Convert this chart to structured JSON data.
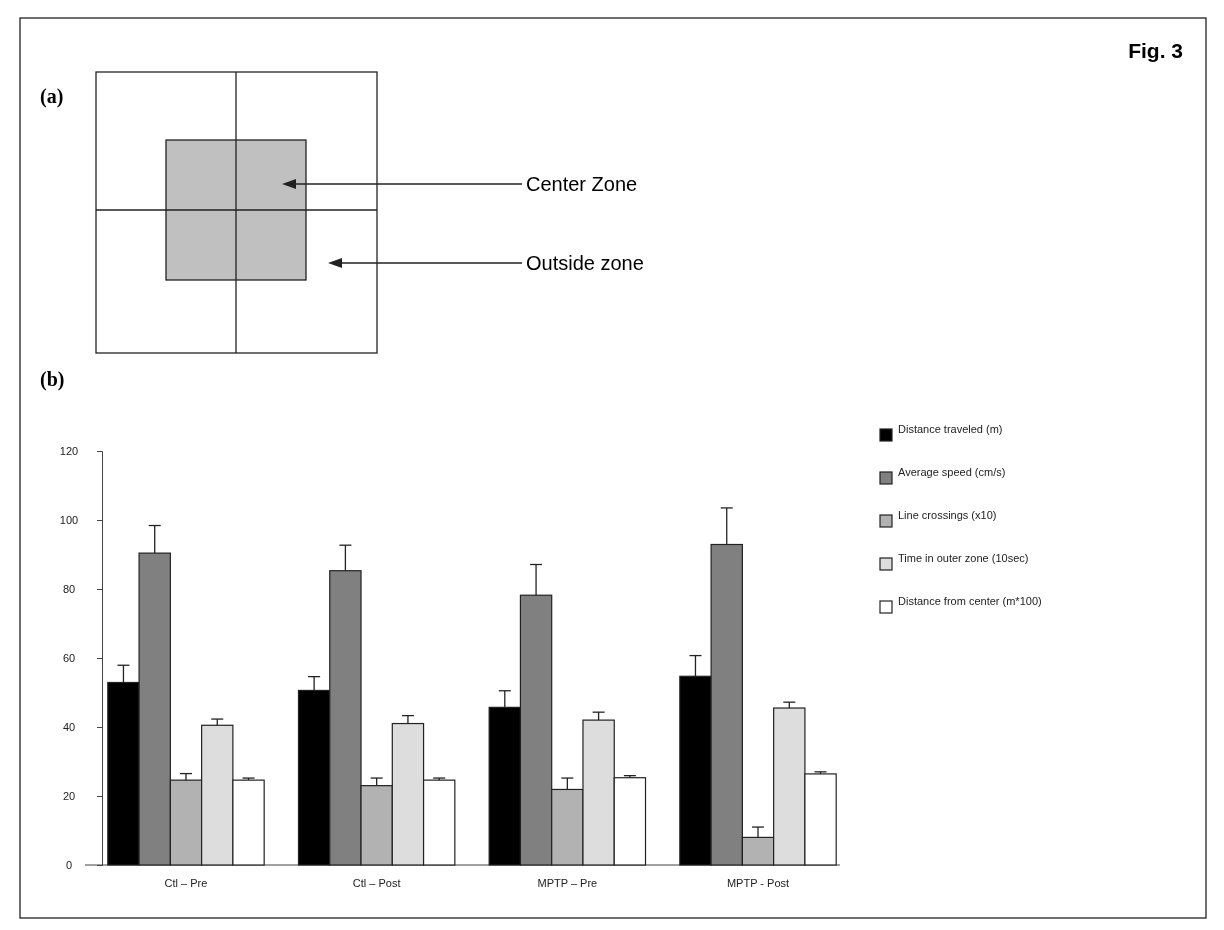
{
  "chart_data": {
    "type": "bar",
    "title": "Fig. 3",
    "annotations": [
      "(a)",
      "Center Zone",
      "Outside zone",
      "(b)"
    ],
    "categories": [
      "Ctl – Pre",
      "Ctl – Post",
      "MPTP – Pre",
      "MPTP - Post"
    ],
    "series": [
      {
        "name": "Distance traveled (m)",
        "color": "#000000",
        "values": [
          52.9,
          50.6,
          45.7,
          54.7
        ],
        "errors": [
          [
            52.9,
            57.9
          ],
          [
            50.6,
            54.6
          ],
          [
            45.7,
            50.5
          ],
          [
            54.7,
            60.7
          ]
        ]
      },
      {
        "name": "Average speed (cm/s)",
        "color": "#808080",
        "values": [
          90.4,
          85.3,
          78.2,
          92.9
        ],
        "errors": [
          [
            90.4,
            98.4
          ],
          [
            85.3,
            92.7
          ],
          [
            78.2,
            87.1
          ],
          [
            92.9,
            103.5
          ]
        ]
      },
      {
        "name": "Line crossings (x10)",
        "color": "#b2b2b2",
        "values": [
          24.6,
          23.0,
          21.9,
          8.0
        ],
        "errors": [
          [
            24.6,
            26.5
          ],
          [
            23.0,
            25.2
          ],
          [
            21.9,
            25.2
          ],
          [
            8.0,
            11.0
          ]
        ]
      },
      {
        "name": "Time in outer zone (10sec)",
        "color": "#dddddd",
        "values": [
          40.5,
          41.0,
          42.0,
          45.5
        ],
        "errors": [
          [
            40.5,
            42.3
          ],
          [
            41.0,
            43.3
          ],
          [
            42.0,
            44.3
          ],
          [
            45.5,
            47.2
          ]
        ]
      },
      {
        "name": "Distance from center (m*100)",
        "color": "#ffffff",
        "values": [
          24.6,
          24.6,
          25.3,
          26.4
        ],
        "errors": [
          [
            24.6,
            25.2
          ],
          [
            24.6,
            25.2
          ],
          [
            25.3,
            25.9
          ],
          [
            26.4,
            27.0
          ]
        ]
      }
    ],
    "ylim": [
      0,
      120
    ],
    "yticks": [
      0,
      20,
      40,
      60,
      80,
      100,
      120
    ],
    "legend": "right"
  }
}
